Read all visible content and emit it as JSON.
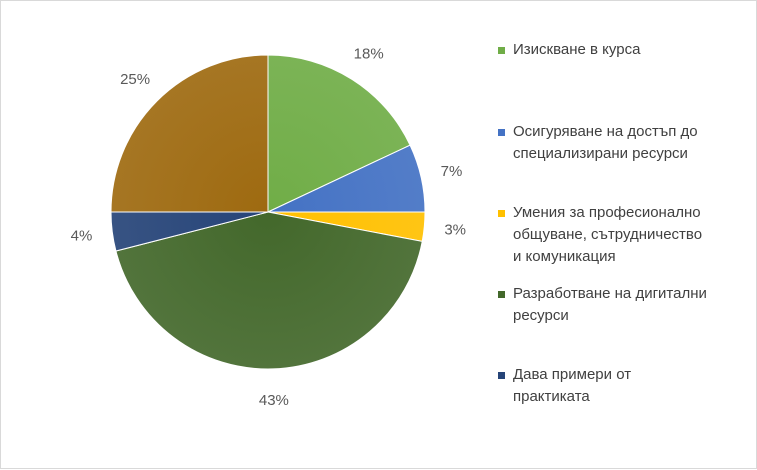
{
  "chart_data": {
    "type": "pie",
    "categories": [
      "Изискване в курса",
      "Осигуряване на достъп до специализирани ресурси",
      "Умения за професионално общуване, сътрудничество и комуникация",
      "Разработване на дигитални ресурси",
      "Дава примери от практиката",
      "25%"
    ],
    "legend": [
      {
        "line1": "Изискване в курса",
        "line2": "",
        "line3": "",
        "color": "#70ad47"
      },
      {
        "line1": "Осигуряване на достъп до",
        "line2": "специализирани ресурси",
        "line3": "",
        "color": "#4472c4"
      },
      {
        "line1": "Умения за професионално",
        "line2": "общуване, сътрудничество",
        "line3": "и комуникация",
        "color": "#ffc000"
      },
      {
        "line1": "Разработване на дигитални",
        "line2": "ресурси",
        "line3": "",
        "color": "#43682b"
      },
      {
        "line1": "Дава примери от",
        "line2": "практиката",
        "line3": "",
        "color": "#264478"
      }
    ],
    "slices": [
      {
        "category": "Изискване в курса",
        "value": 18,
        "label": "18%",
        "color": "#70ad47"
      },
      {
        "category": "Осигуряване на достъп до специализирани ресурси",
        "value": 7,
        "label": "7%",
        "color": "#4472c4"
      },
      {
        "category": "Умения за професионално общуване, сътрудничество и комуникация",
        "value": 3,
        "label": "3%",
        "color": "#ffc000"
      },
      {
        "category": "Разработване на дигитални ресурси",
        "value": 43,
        "label": "43%",
        "color": "#43682b"
      },
      {
        "category": "Дава примери от практиката",
        "value": 4,
        "label": "4%",
        "color": "#264478"
      },
      {
        "category": "",
        "value": 25,
        "label": "25%",
        "color": "#9e6a10"
      }
    ],
    "legend_position": "right",
    "title": ""
  }
}
